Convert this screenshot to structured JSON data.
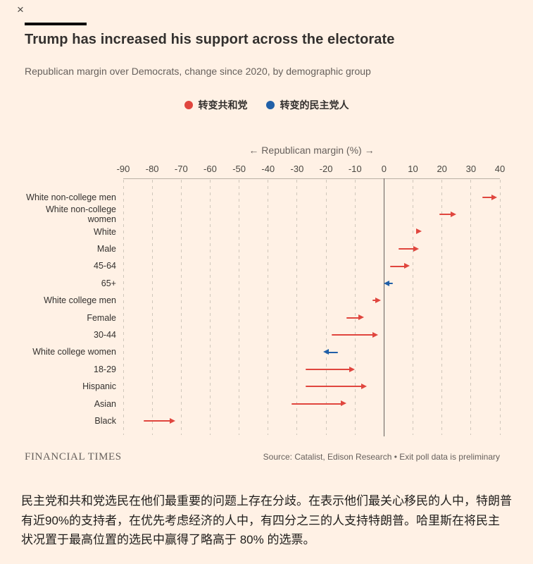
{
  "colors": {
    "republican": "#e0463e",
    "democrat": "#2160a8",
    "background": "#fff1e5"
  },
  "page": {
    "close_glyph": "×",
    "title": "Trump has increased his support across the electorate",
    "subtitle": "Republican margin over Democrats, change since 2020, by demographic group"
  },
  "legend": [
    {
      "label": "转变共和党",
      "key": "republican"
    },
    {
      "label": "转变的民主党人",
      "key": "democrat"
    }
  ],
  "chart_data": {
    "type": "arrow",
    "axis_title": "← Republican margin (%) →",
    "xlim": [
      -90,
      40
    ],
    "xticks": [
      -90,
      -80,
      -70,
      -60,
      -50,
      -40,
      -30,
      -20,
      -10,
      0,
      10,
      20,
      30,
      40
    ],
    "rows": [
      {
        "label": "White non-college men",
        "from": 34,
        "to": 39,
        "shift": "republican"
      },
      {
        "label": "White non-college women",
        "from": 19,
        "to": 25,
        "shift": "republican"
      },
      {
        "label": "White",
        "from": 11,
        "to": 13,
        "shift": "republican"
      },
      {
        "label": "Male",
        "from": 5,
        "to": 12,
        "shift": "republican"
      },
      {
        "label": "45-64",
        "from": 2,
        "to": 9,
        "shift": "republican"
      },
      {
        "label": "65+",
        "from": 3,
        "to": 0,
        "shift": "democrat"
      },
      {
        "label": "White college men",
        "from": -4,
        "to": -1,
        "shift": "republican"
      },
      {
        "label": "Female",
        "from": -13,
        "to": -7,
        "shift": "republican"
      },
      {
        "label": "30-44",
        "from": -18,
        "to": -2,
        "shift": "republican"
      },
      {
        "label": "White college women",
        "from": -16,
        "to": -21,
        "shift": "democrat"
      },
      {
        "label": "18-29",
        "from": -27,
        "to": -10,
        "shift": "republican"
      },
      {
        "label": "Hispanic",
        "from": -27,
        "to": -6,
        "shift": "republican"
      },
      {
        "label": "Asian",
        "from": -32,
        "to": -13,
        "shift": "republican"
      },
      {
        "label": "Black",
        "from": -83,
        "to": -72,
        "shift": "republican"
      }
    ]
  },
  "footer": {
    "brand": "FINANCIAL TIMES",
    "source": "Source: Catalist, Edison Research • Exit poll data is preliminary"
  },
  "caption": "民主党和共和党选民在他们最重要的问题上存在分歧。在表示他们最关心移民的人中，特朗普有近90%的支持者，在优先考虑经济的人中，有四分之三的人支持特朗普。哈里斯在将民主状况置于最高位置的选民中赢得了略高于 80% 的选票。"
}
